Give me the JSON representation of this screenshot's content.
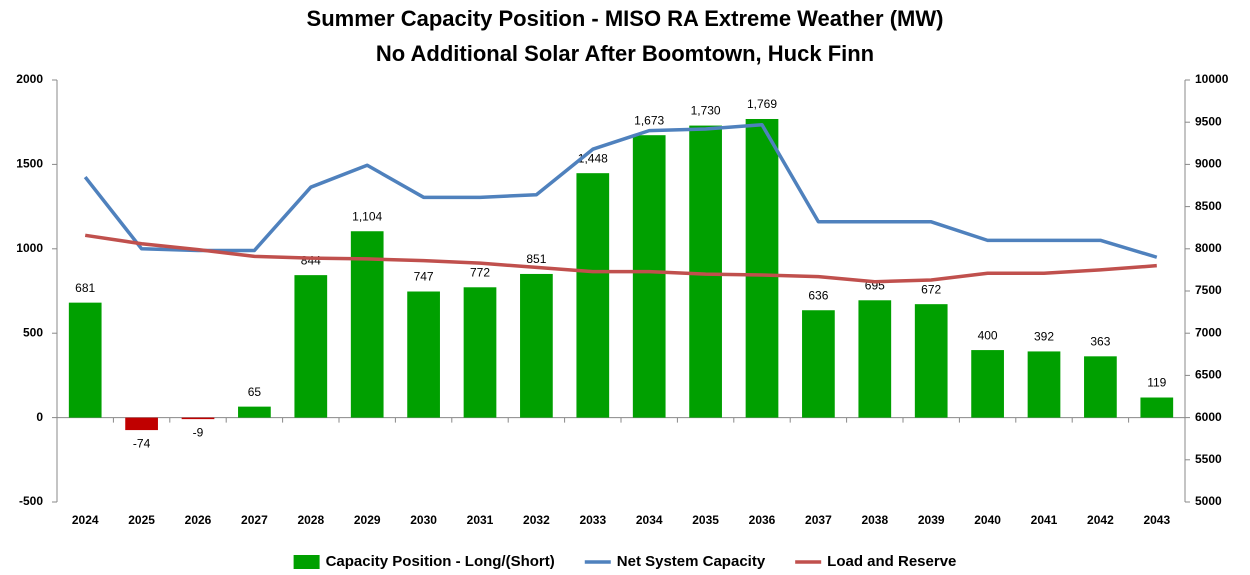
{
  "chart_data": {
    "type": "bar",
    "title": "Summer Capacity Position - MISO RA Extreme Weather (MW)",
    "subtitle": "No Additional Solar After Boomtown, Huck Finn",
    "categories": [
      "2024",
      "2025",
      "2026",
      "2027",
      "2028",
      "2029",
      "2030",
      "2031",
      "2032",
      "2033",
      "2034",
      "2035",
      "2036",
      "2037",
      "2038",
      "2039",
      "2040",
      "2041",
      "2042",
      "2043"
    ],
    "series": [
      {
        "name": "Capacity Position - Long/(Short)",
        "type": "bar",
        "color": "#00a000",
        "negative_color": "#c00000",
        "values": [
          681,
          -74,
          -9,
          65,
          844,
          1104,
          747,
          772,
          851,
          1448,
          1673,
          1730,
          1769,
          636,
          695,
          672,
          400,
          392,
          363,
          119
        ],
        "value_labels": [
          "681",
          "-74",
          "-9",
          "65",
          "844",
          "1,104",
          "747",
          "772",
          "851",
          "1,448",
          "1,673",
          "1,730",
          "1,769",
          "636",
          "695",
          "672",
          "400",
          "392",
          "363",
          "119"
        ]
      },
      {
        "name": "Net System Capacity",
        "type": "line",
        "axis": "y2",
        "color": "#4f81bd",
        "values": [
          8850,
          8000,
          7980,
          7980,
          8730,
          8990,
          8610,
          8610,
          8640,
          9180,
          9400,
          9420,
          9470,
          8320,
          8320,
          8320,
          8100,
          8100,
          8100,
          7900
        ]
      },
      {
        "name": "Load and Reserve",
        "type": "line",
        "axis": "y2",
        "color": "#c0504d",
        "values": [
          8160,
          8060,
          7990,
          7910,
          7890,
          7880,
          7860,
          7830,
          7780,
          7730,
          7730,
          7700,
          7690,
          7670,
          7610,
          7630,
          7710,
          7710,
          7750,
          7800
        ]
      }
    ],
    "ylim": [
      -500,
      2000
    ],
    "yticks": [
      -500,
      0,
      500,
      1000,
      1500,
      2000
    ],
    "y2lim": [
      5000,
      10000
    ],
    "y2ticks": [
      5000,
      5500,
      6000,
      6500,
      7000,
      7500,
      8000,
      8500,
      9000,
      9500,
      10000
    ],
    "grid": false,
    "legend": "bottom"
  }
}
